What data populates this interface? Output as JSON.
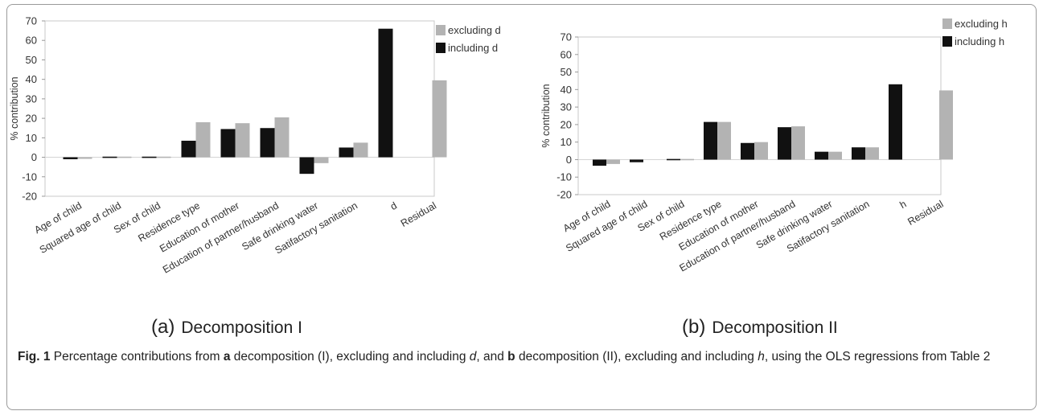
{
  "chart_data": [
    {
      "type": "bar",
      "title": "",
      "ylabel": "% contribution",
      "xlabel": "",
      "ylim": [
        -20,
        70
      ],
      "yticks": [
        -20,
        -10,
        0,
        10,
        20,
        30,
        40,
        50,
        60,
        70
      ],
      "grid": false,
      "legend_position": "top-right",
      "categories": [
        "Age of child",
        "Squared age of child",
        "Sex of child",
        "Residence type",
        "Education of mother",
        "Education of partner/husband",
        "Safe drinking water",
        "Satifactory sanitation",
        "d",
        "Residual"
      ],
      "series": [
        {
          "name": "including d",
          "color": "#111111",
          "values": [
            -1,
            -0.3,
            -0.5,
            8.5,
            14.5,
            15,
            -8.5,
            5,
            66,
            null
          ]
        },
        {
          "name": "excluding d",
          "color": "#b3b3b3",
          "values": [
            -0.8,
            -0.3,
            -0.4,
            18,
            17.5,
            20.5,
            -3,
            7.5,
            null,
            39.5
          ]
        }
      ],
      "legend_order": [
        "excluding d",
        "including d"
      ]
    },
    {
      "type": "bar",
      "title": "",
      "ylabel": "% contribution",
      "xlabel": "",
      "ylim": [
        -20,
        70
      ],
      "yticks": [
        -20,
        -10,
        0,
        10,
        20,
        30,
        40,
        50,
        60,
        70
      ],
      "grid": false,
      "legend_position": "top-right",
      "categories": [
        "Age of child",
        "Squared age of child",
        "Sex of child",
        "Residence type",
        "Education of mother",
        "Education of partner/husband",
        "Safe drinking water",
        "Satifactory sanitation",
        "h",
        "Residual"
      ],
      "series": [
        {
          "name": "including h",
          "color": "#111111",
          "values": [
            -3.5,
            -1.5,
            -0.5,
            21.5,
            9.5,
            18.5,
            4.5,
            7,
            43,
            null
          ]
        },
        {
          "name": "excluding h",
          "color": "#b3b3b3",
          "values": [
            -2.5,
            null,
            -0.5,
            21.5,
            10,
            19,
            4.5,
            7,
            null,
            39.5
          ]
        }
      ],
      "legend_order": [
        "excluding h",
        "including h"
      ]
    }
  ],
  "subfigures": [
    {
      "letter": "(a)",
      "label": "Decomposition I"
    },
    {
      "letter": "(b)",
      "label": "Decomposition II"
    }
  ],
  "caption": {
    "fig": "Fig. 1",
    "t1": " Percentage contributions from ",
    "a": "a",
    "t2": " decomposition (I), excluding and including ",
    "d": "d",
    "t3": ", and ",
    "b": "b",
    "t4": " decomposition (II), excluding and including ",
    "h": "h",
    "t5": ", using the OLS regressions from Table 2"
  }
}
